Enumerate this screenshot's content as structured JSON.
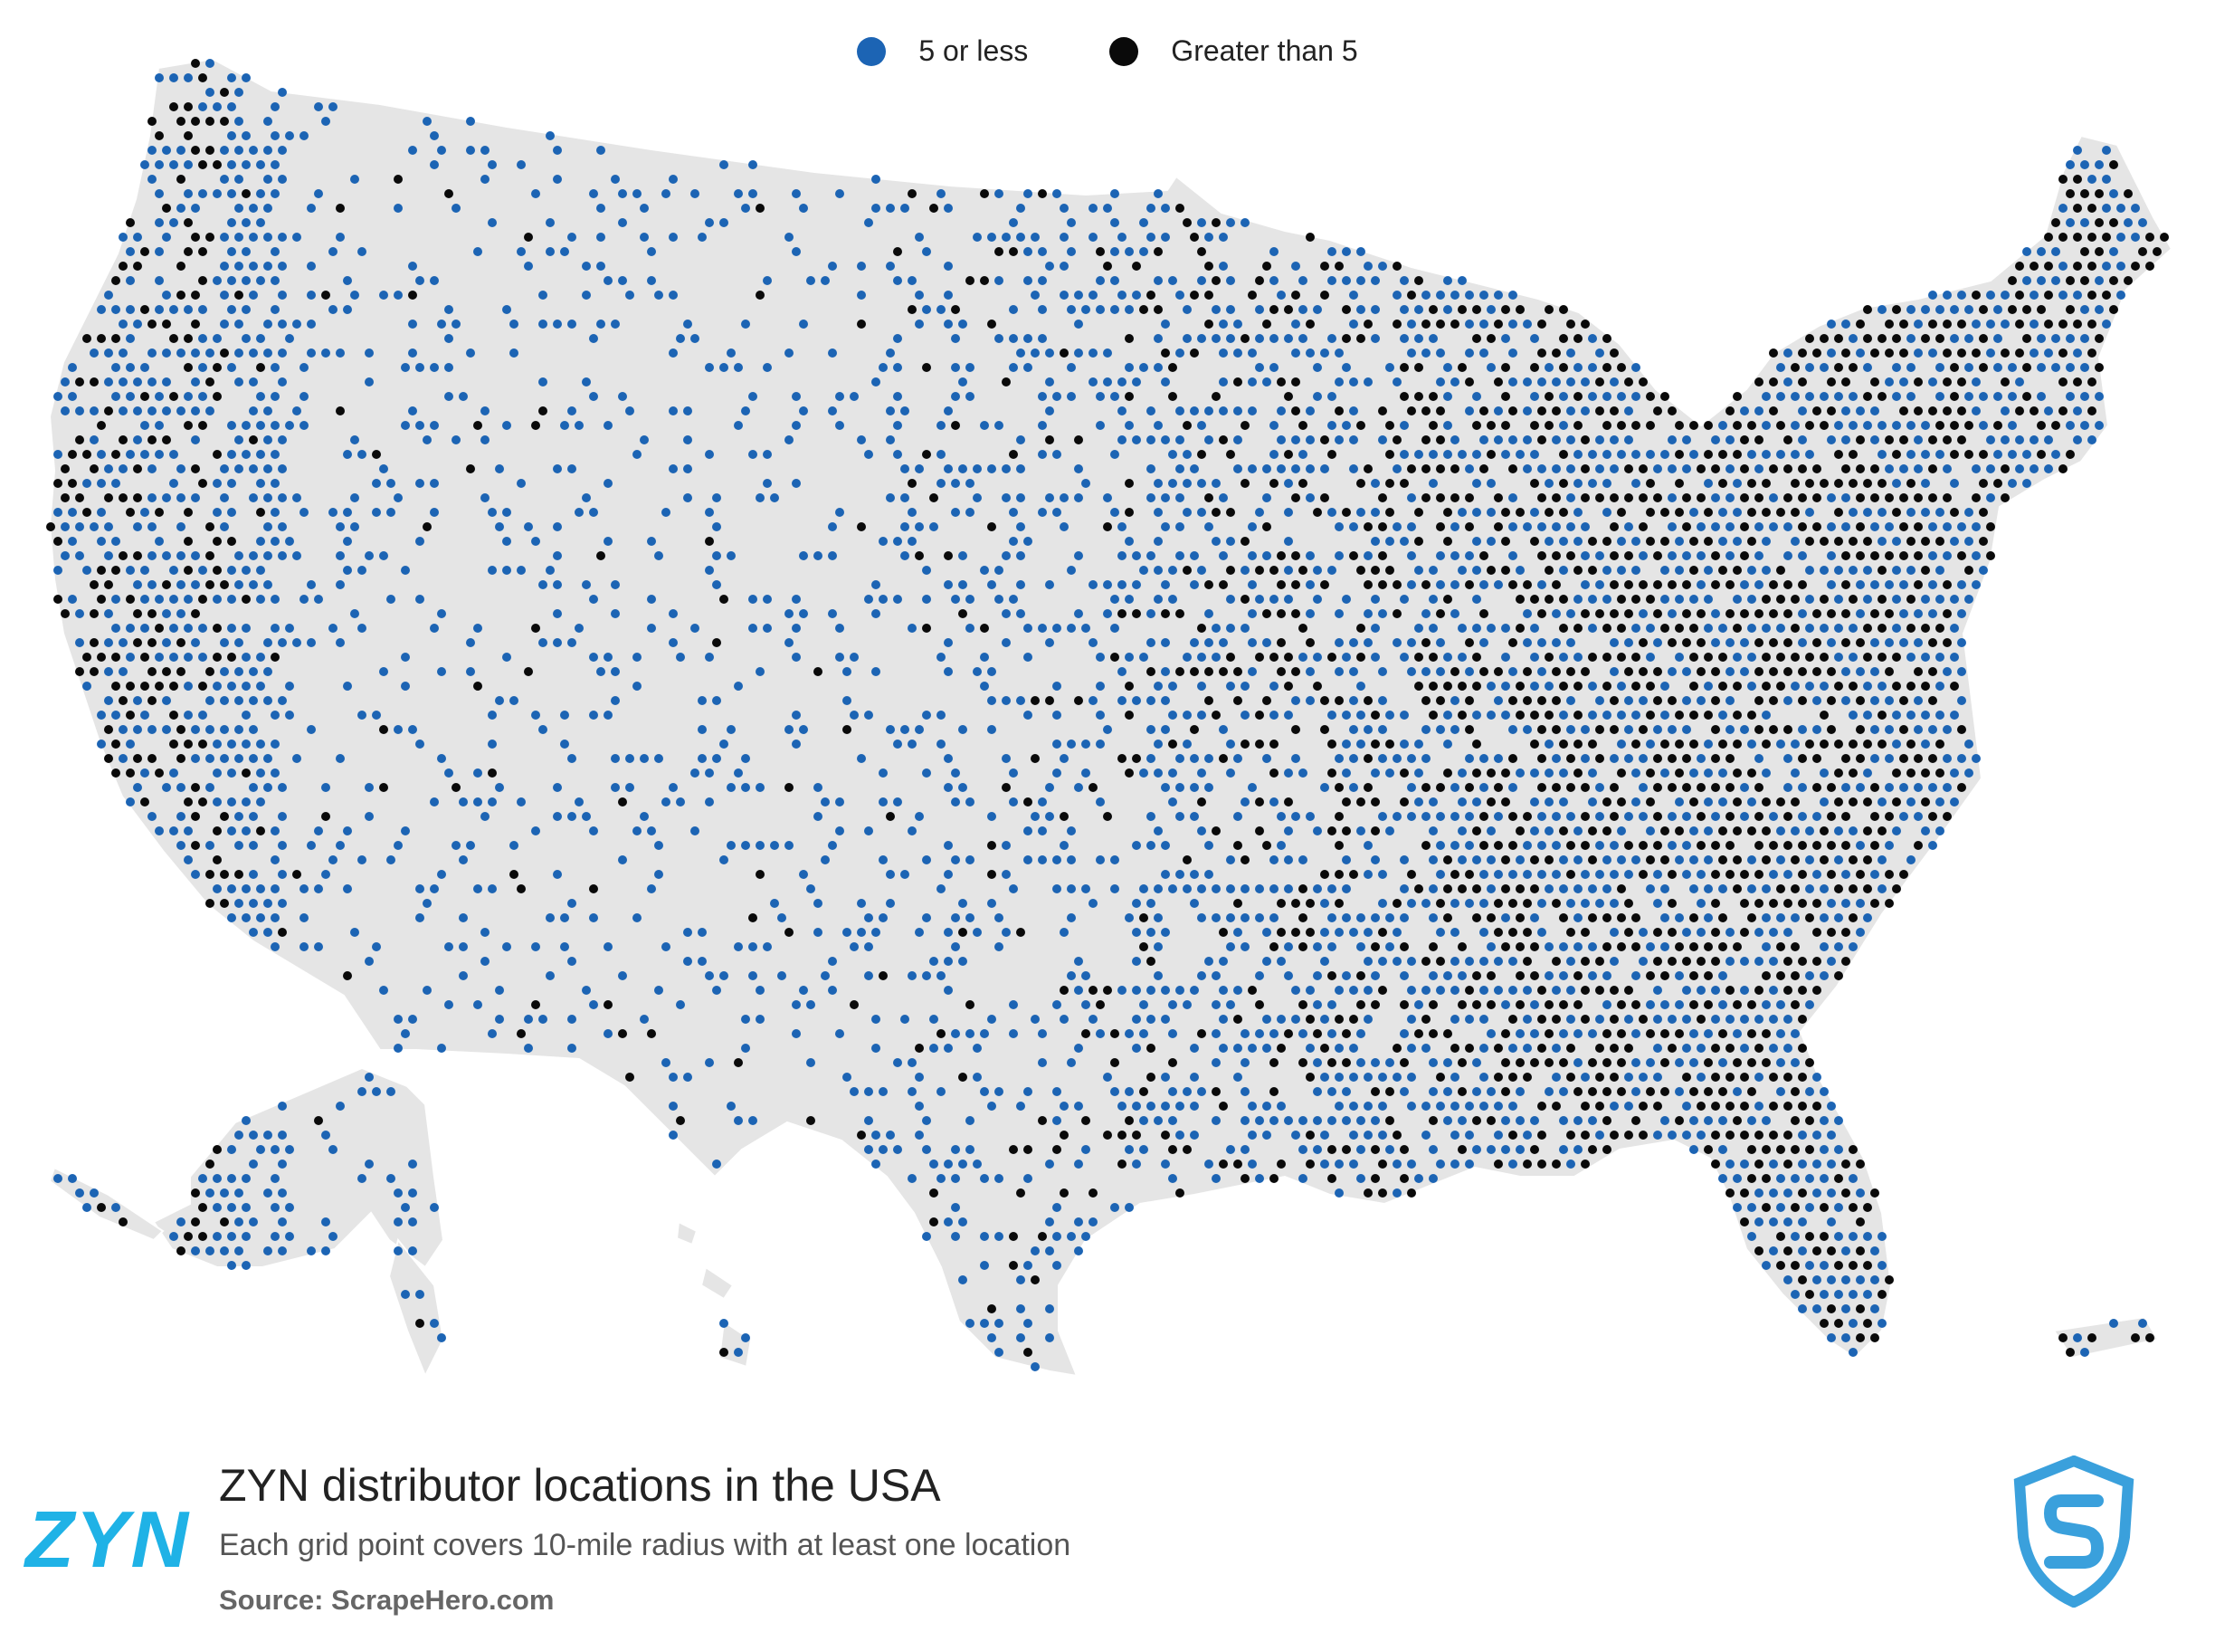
{
  "legend": {
    "items": [
      {
        "label": "5 or less",
        "color": "#1c64b4"
      },
      {
        "label": "Greater than 5",
        "color": "#0a0a0a"
      }
    ]
  },
  "footer": {
    "logo_text": "ZYN",
    "logo_color": "#1fb2e6",
    "title": "ZYN distributor locations in the USA",
    "subtitle": "Each grid point covers 10-mile radius with at least one location",
    "source": "Source: ScrapeHero.com"
  },
  "map": {
    "land_color": "#e5e5e5",
    "border_color": "#ffffff",
    "icon": "scrapehero-shield-icon"
  }
}
